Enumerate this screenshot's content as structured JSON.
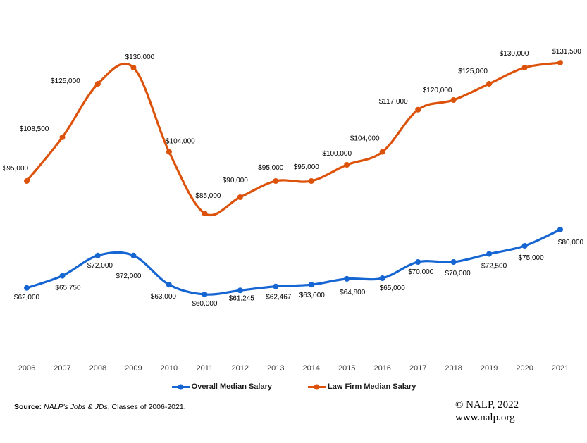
{
  "chart_data": {
    "type": "line",
    "title": "",
    "x": [
      "2006",
      "2007",
      "2008",
      "2009",
      "2010",
      "2011",
      "2012",
      "2013",
      "2014",
      "2015",
      "2016",
      "2017",
      "2018",
      "2019",
      "2020",
      "2021"
    ],
    "series": [
      {
        "name": "Overall Median Salary",
        "color": "#1565D2",
        "values": [
          62000,
          65750,
          72000,
          72000,
          63000,
          60000,
          61245,
          62467,
          63000,
          64800,
          65000,
          70000,
          70000,
          72500,
          75000,
          80000
        ],
        "labels": [
          "$62,000",
          "$65,750",
          "$72,000",
          "$72,000",
          "$63,000",
          "$60,000",
          "$61,245",
          "$62,467",
          "$63,000",
          "$64,800",
          "$65,000",
          "$70,000",
          "$70,000",
          "$72,500",
          "$75,000",
          "$80,000"
        ]
      },
      {
        "name": "Law Firm Median Salary",
        "color": "#DC520A",
        "values": [
          95000,
          108500,
          125000,
          130000,
          104000,
          85000,
          90000,
          95000,
          95000,
          100000,
          104000,
          117000,
          120000,
          125000,
          130000,
          131500
        ],
        "labels": [
          "$95,000",
          "$108,500",
          "$125,000",
          "$130,000",
          "$104,000",
          "$85,000",
          "$90,000",
          "$95,000",
          "$95,000",
          "$100,000",
          "$104,000",
          "$117,000",
          "$120,000",
          "$125,000",
          "$130,000",
          "$131,500"
        ]
      }
    ],
    "ylim": [
      40000,
      151000
    ],
    "grid": false,
    "smoothed": true,
    "markers": "circle",
    "legend_position": "bottom",
    "axis_color": "#D9D9D9",
    "tick_color": "#3B3B3B",
    "label_color": "#000000"
  },
  "footer": {
    "source_prefix": "Source: ",
    "source_italic": "NALP's Jobs & JDs",
    "source_suffix": ", Classes of 2006-2021.",
    "copyright": "© NALP, 2022",
    "website": "www.nalp.org"
  }
}
